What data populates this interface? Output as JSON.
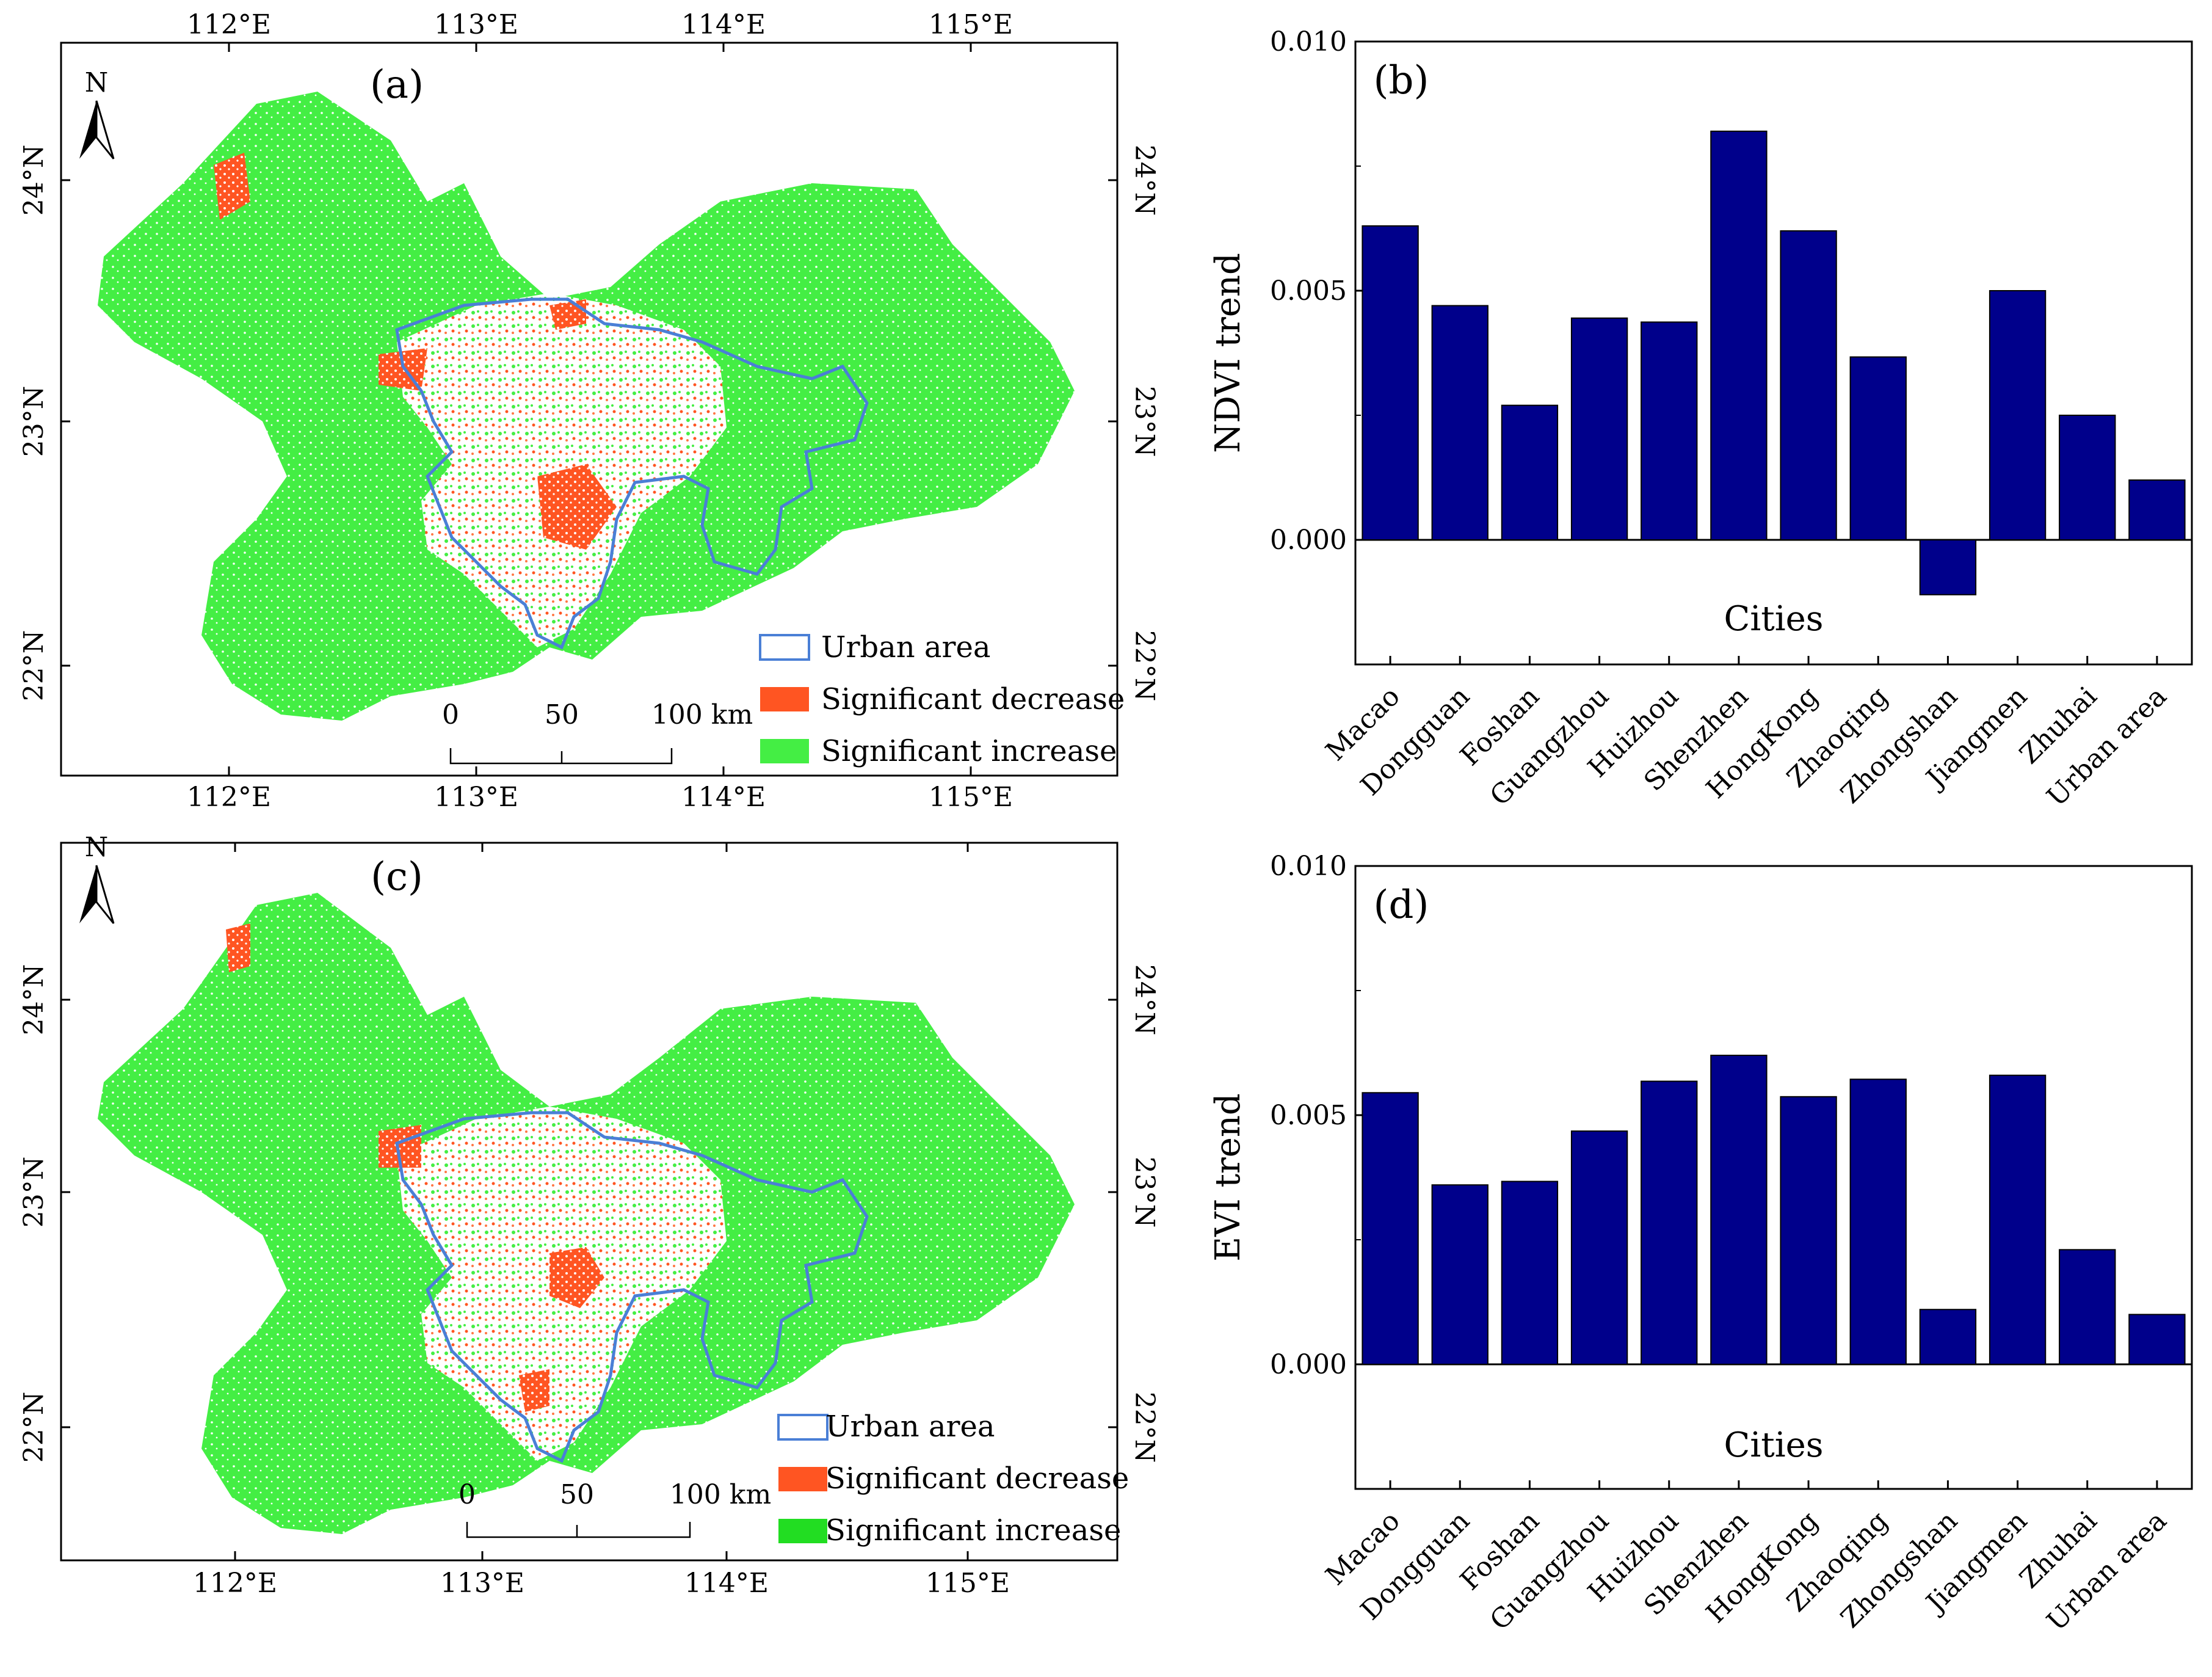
{
  "colors": {
    "bar": "#00008b",
    "bar_stroke": "#000000",
    "increase": "#44ee44",
    "decrease": "#ff5522",
    "urban_outline": "#4a7fd6",
    "background": "#ffffff"
  },
  "maps": [
    {
      "panel_label": "(a)",
      "north_label": "N",
      "lon_labels": [
        "112°E",
        "113°E",
        "114°E",
        "115°E"
      ],
      "lat_labels": [
        "24°N",
        "23°N",
        "22°N"
      ],
      "legend": {
        "urban": "Urban area",
        "decrease": "Significant decrease",
        "increase": "Significant increase"
      },
      "scale": {
        "zero": "0",
        "mid": "50",
        "end": "100 km"
      }
    },
    {
      "panel_label": "(c)",
      "north_label": "N",
      "lon_labels": [
        "112°E",
        "113°E",
        "114°E",
        "115°E"
      ],
      "lat_labels": [
        "24°N",
        "23°N",
        "22°N"
      ],
      "legend": {
        "urban": "Urban area",
        "decrease": "Significant decrease",
        "increase": "Significant increase"
      },
      "scale": {
        "zero": "0",
        "mid": "50",
        "end": "100 km"
      }
    }
  ],
  "chart_data": [
    {
      "type": "bar",
      "panel_label": "(b)",
      "title": "",
      "xlabel": "Cities",
      "ylabel": "NDVI trend",
      "categories": [
        "Macao",
        "Dongguan",
        "Foshan",
        "Guangzhou",
        "Huizhou",
        "Shenzhen",
        "HongKong",
        "Zhaoqing",
        "Zhongshan",
        "Jiangmen",
        "Zhuhai",
        "Urban area"
      ],
      "values": [
        0.0063,
        0.0047,
        0.0027,
        0.00445,
        0.00437,
        0.0082,
        0.0062,
        0.00367,
        -0.0011,
        0.005,
        0.0025,
        0.0012
      ],
      "ylim": [
        -0.0025,
        0.01
      ],
      "yticks": [
        0.0,
        0.005,
        0.01
      ],
      "ytick_labels": [
        "0.000",
        "0.005",
        "0.010"
      ]
    },
    {
      "type": "bar",
      "panel_label": "(d)",
      "title": "",
      "xlabel": "Cities",
      "ylabel": "EVI trend",
      "categories": [
        "Macao",
        "Dongguan",
        "Foshan",
        "Guangzhou",
        "Huizhou",
        "Shenzhen",
        "HongKong",
        "Zhaoqing",
        "Zhongshan",
        "Jiangmen",
        "Zhuhai",
        "Urban area"
      ],
      "values": [
        0.00545,
        0.0036,
        0.00367,
        0.00468,
        0.00568,
        0.0062,
        0.00537,
        0.00572,
        0.0011,
        0.0058,
        0.0023,
        0.001
      ],
      "ylim": [
        -0.0025,
        0.01
      ],
      "yticks": [
        0.0,
        0.005,
        0.01
      ],
      "ytick_labels": [
        "0.000",
        "0.005",
        "0.010"
      ]
    }
  ]
}
